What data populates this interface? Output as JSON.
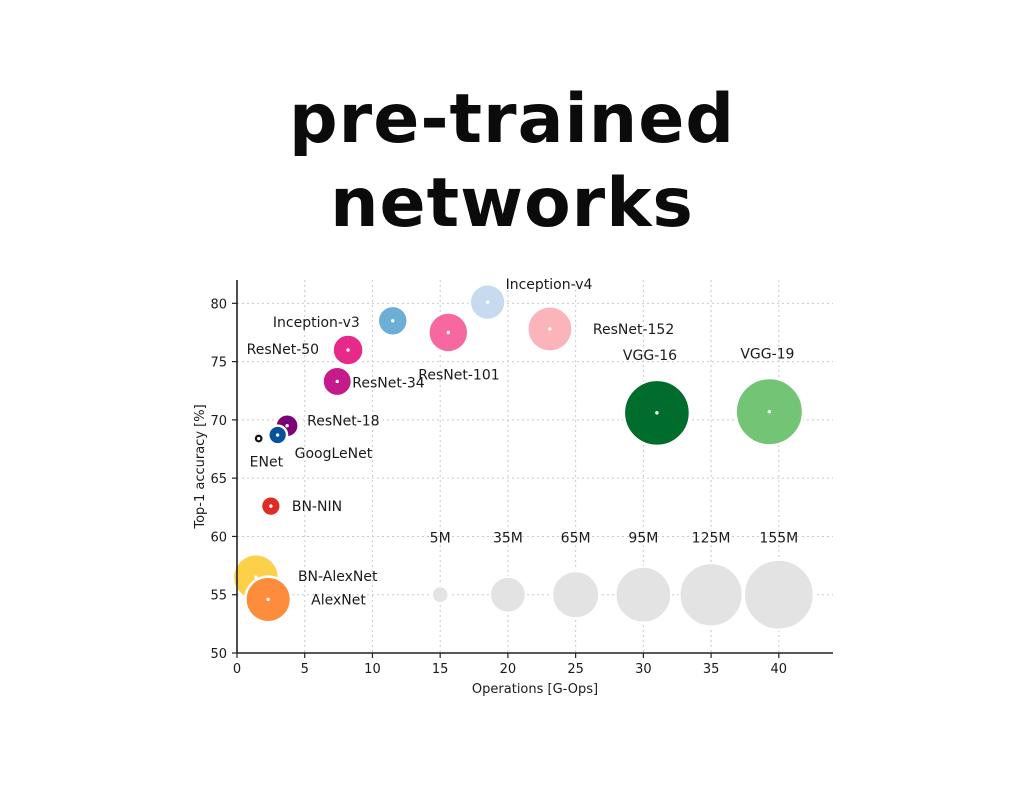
{
  "slide": {
    "title_line1": "pre-trained",
    "title_line2": "networks"
  },
  "chart_data": {
    "type": "scatter",
    "subtype": "bubble",
    "xlabel": "Operations [G-Ops]",
    "ylabel": "Top-1 accuracy [%]",
    "xlim": [
      0,
      44
    ],
    "ylim": [
      50,
      82
    ],
    "xticks": [
      0,
      5,
      10,
      15,
      20,
      25,
      30,
      35,
      40
    ],
    "yticks": [
      50,
      55,
      60,
      65,
      70,
      75,
      80
    ],
    "grid": true,
    "points": [
      {
        "label": "Inception-v4",
        "x": 18.5,
        "y": 80.1,
        "params_m": 35,
        "color": "#c6dbef"
      },
      {
        "label": "Inception-v3",
        "x": 11.5,
        "y": 78.5,
        "params_m": 23,
        "color": "#6baed6"
      },
      {
        "label": "ResNet-152",
        "x": 23.1,
        "y": 77.8,
        "params_m": 60,
        "color": "#fbb4b9"
      },
      {
        "label": "ResNet-101",
        "x": 15.6,
        "y": 77.5,
        "params_m": 45,
        "color": "#f768a1"
      },
      {
        "label": "ResNet-50",
        "x": 8.2,
        "y": 76.0,
        "params_m": 25,
        "color": "#e7298a"
      },
      {
        "label": "ResNet-34",
        "x": 7.4,
        "y": 73.3,
        "params_m": 22,
        "color": "#c51b8a"
      },
      {
        "label": "VGG-16",
        "x": 31.0,
        "y": 70.6,
        "params_m": 138,
        "color": "#006d2c"
      },
      {
        "label": "VGG-19",
        "x": 39.3,
        "y": 70.7,
        "params_m": 144,
        "color": "#74c476"
      },
      {
        "label": "ResNet-18",
        "x": 3.7,
        "y": 69.5,
        "params_m": 12,
        "color": "#7a0177"
      },
      {
        "label": "GoogLeNet",
        "x": 3.0,
        "y": 68.7,
        "params_m": 7,
        "color": "#08519c"
      },
      {
        "label": "ENet",
        "x": 1.6,
        "y": 68.4,
        "params_m": 1,
        "color": "#111111"
      },
      {
        "label": "BN-NIN",
        "x": 2.5,
        "y": 62.6,
        "params_m": 8,
        "color": "#de2d26"
      },
      {
        "label": "BN-AlexNet",
        "x": 1.4,
        "y": 56.5,
        "params_m": 62,
        "color": "#fdd049"
      },
      {
        "label": "AlexNet",
        "x": 2.3,
        "y": 54.6,
        "params_m": 61,
        "color": "#fd8d3c"
      }
    ],
    "size_legend": [
      {
        "label": "5M",
        "x": 15,
        "y": 55,
        "params_m": 5
      },
      {
        "label": "35M",
        "x": 20,
        "y": 55,
        "params_m": 35
      },
      {
        "label": "65M",
        "x": 25,
        "y": 55,
        "params_m": 65
      },
      {
        "label": "95M",
        "x": 30,
        "y": 55,
        "params_m": 95
      },
      {
        "label": "125M",
        "x": 35,
        "y": 55,
        "params_m": 125
      },
      {
        "label": "155M",
        "x": 40,
        "y": 55,
        "params_m": 155
      }
    ],
    "size_legend_color": "#e3e3e3"
  }
}
